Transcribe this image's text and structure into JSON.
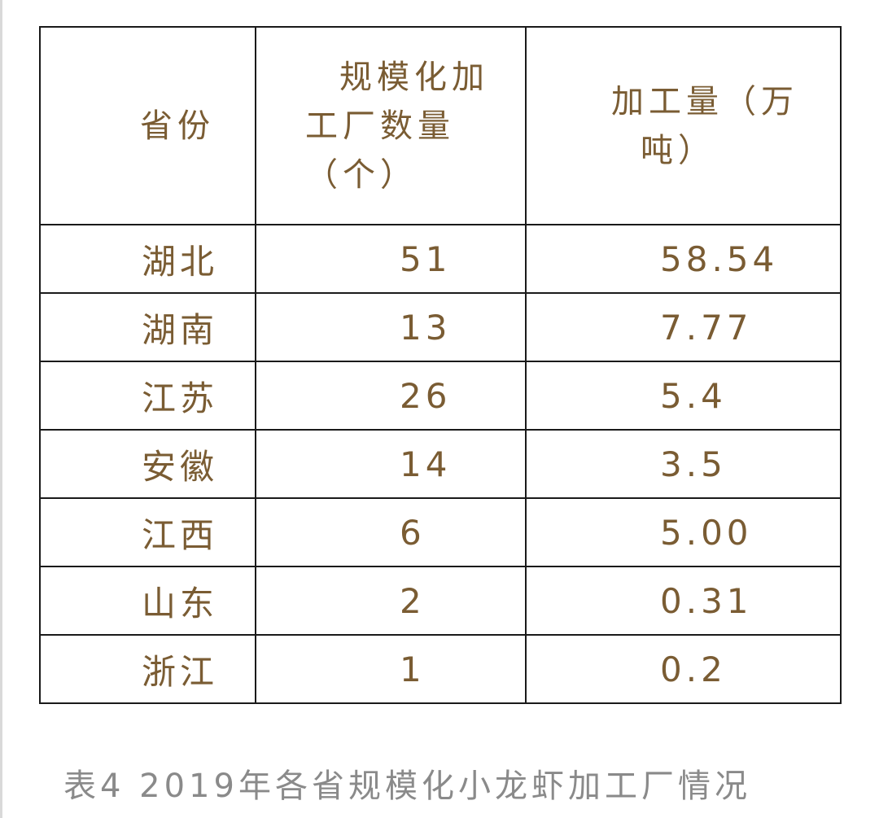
{
  "table": {
    "headers": {
      "province": "省份",
      "count_lines": [
        "规模化加",
        "工厂数量",
        "（个）"
      ],
      "amount_lines": [
        "加工量（万",
        "吨）"
      ]
    },
    "rows": [
      {
        "province": "湖北",
        "count": "51",
        "amount": "58.54"
      },
      {
        "province": "湖南",
        "count": "13",
        "amount": "7.77"
      },
      {
        "province": "江苏",
        "count": "26",
        "amount": "5.4"
      },
      {
        "province": "安徽",
        "count": "14",
        "amount": "3.5"
      },
      {
        "province": "江西",
        "count": "6",
        "amount": "5.00"
      },
      {
        "province": "山东",
        "count": "2",
        "amount": "0.31"
      },
      {
        "province": "浙江",
        "count": "1",
        "amount": "0.2"
      }
    ]
  },
  "caption": "表4 2019年各省规模化小龙虾加工厂情况",
  "colors": {
    "cell_text": "#7a5c33",
    "border": "#1a1a1a",
    "caption_text": "#8a8a8a"
  }
}
